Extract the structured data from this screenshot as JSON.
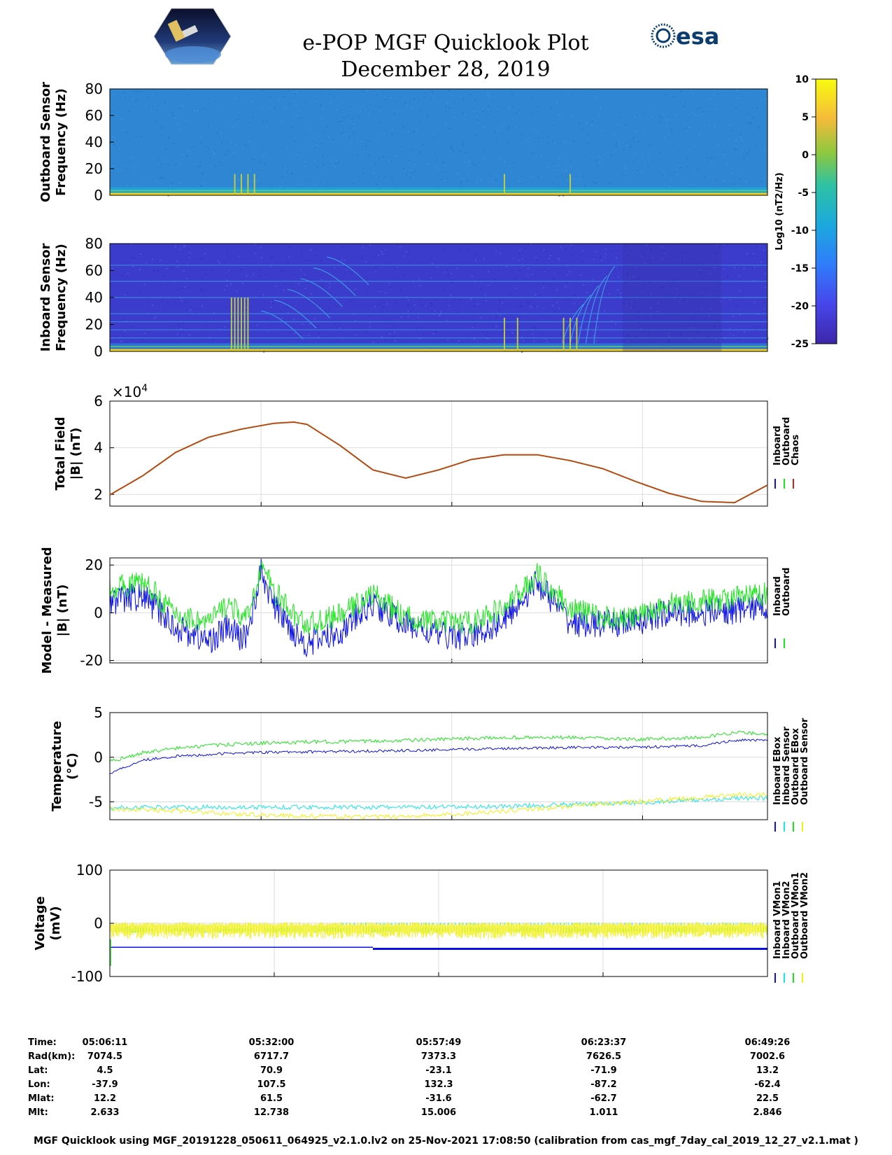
{
  "title": "e-POP MGF Quicklook Plot",
  "date": "December 28, 2019",
  "logos": {
    "left": "cassiope-mission-logo",
    "right_text": "esa"
  },
  "colors": {
    "blue": "#0a10e6",
    "green": "#1ee61e",
    "cyan": "#19e6e6",
    "yellow": "#f0f014",
    "red": "#d21e1e",
    "trace_brown": "#b34a10",
    "spec_out_bg": "#2f86d2",
    "spec_in_bg": "#3c3ccc"
  },
  "chart_data": [
    {
      "type": "heatmap",
      "name": "outboard-spectrogram",
      "ylabel": [
        "Outboard Sensor",
        "Frequency (Hz)"
      ],
      "ylim": [
        0,
        80
      ],
      "yticks": [
        "80",
        "60",
        "40",
        "20",
        "0"
      ],
      "bursts_fraction": [
        0.19,
        0.2,
        0.21,
        0.22,
        0.6,
        0.7
      ]
    },
    {
      "type": "heatmap",
      "name": "inboard-spectrogram",
      "ylabel": [
        "Inboard Sensor",
        "Frequency (Hz)"
      ],
      "ylim": [
        0,
        80
      ],
      "yticks": [
        "80",
        "60",
        "40",
        "20",
        "0"
      ],
      "harmonic_lines_hz": [
        10,
        16,
        22,
        28,
        40,
        52,
        64
      ]
    },
    {
      "type": "colorbar",
      "label": "Log10 (nT2/Hz)",
      "ticks": [
        "10",
        "5",
        "0",
        "-5",
        "-10",
        "-15",
        "-20",
        "-25"
      ],
      "range": [
        -25,
        10
      ]
    },
    {
      "type": "line",
      "name": "total-field",
      "ylabel": [
        "Total Field",
        "|B| (nT)"
      ],
      "exponent": "×10",
      "exponent_power": "4",
      "ylim": [
        1.5,
        6
      ],
      "yticks": [
        "6",
        "4",
        "2"
      ],
      "x": [
        0,
        0.05,
        0.1,
        0.15,
        0.2,
        0.25,
        0.28,
        0.3,
        0.35,
        0.4,
        0.45,
        0.5,
        0.55,
        0.6,
        0.65,
        0.7,
        0.75,
        0.8,
        0.85,
        0.9,
        0.95,
        1.0
      ],
      "y": [
        1.98,
        2.8,
        3.8,
        4.45,
        4.8,
        5.05,
        5.1,
        5.0,
        4.1,
        3.05,
        2.7,
        3.05,
        3.5,
        3.7,
        3.7,
        3.45,
        3.1,
        2.55,
        2.05,
        1.7,
        1.65,
        2.4
      ],
      "legend": [
        "Inboard",
        "Outboard",
        "Chaos"
      ]
    },
    {
      "type": "line",
      "name": "model-minus-measured",
      "ylabel": [
        "Model - Measured",
        "|B| (nT)"
      ],
      "ylim": [
        -21,
        23
      ],
      "yticks": [
        "20",
        "0",
        "-20"
      ],
      "x": [
        0,
        0.05,
        0.07,
        0.1,
        0.15,
        0.18,
        0.2,
        0.21,
        0.23,
        0.25,
        0.28,
        0.3,
        0.35,
        0.4,
        0.45,
        0.5,
        0.55,
        0.6,
        0.65,
        0.7,
        0.75,
        0.8,
        0.85,
        0.9,
        0.95,
        1.0
      ],
      "y_inboard": [
        5,
        7,
        2,
        -6,
        -12,
        -6,
        -11,
        -8,
        17,
        3,
        -8,
        -13,
        -8,
        4,
        -5,
        -9,
        -10,
        -3,
        13,
        -4,
        -5,
        -4,
        0,
        0,
        1,
        3
      ],
      "y_outboard": [
        10,
        13,
        8,
        -1,
        -4,
        4,
        -2,
        -2,
        20,
        9,
        -1,
        -5,
        -1,
        8,
        -2,
        -4,
        -4,
        2,
        16,
        2,
        -2,
        -2,
        4,
        5,
        6,
        8
      ],
      "legend": [
        "Inboard",
        "Outboard"
      ]
    },
    {
      "type": "line",
      "name": "temperature",
      "ylabel": [
        "Temperature",
        "(°C)"
      ],
      "ylim": [
        -7,
        5
      ],
      "yticks": [
        "5",
        "0",
        "-5"
      ],
      "x": [
        0,
        0.05,
        0.1,
        0.15,
        0.2,
        0.3,
        0.4,
        0.5,
        0.6,
        0.7,
        0.8,
        0.9,
        0.95,
        1.0
      ],
      "inboard_ebox": [
        -1.8,
        -0.3,
        0.1,
        0.3,
        0.5,
        0.6,
        0.7,
        0.8,
        1.0,
        1.1,
        1.1,
        1.3,
        1.9,
        1.9
      ],
      "inboard_sensor": [
        -5.7,
        -5.6,
        -5.6,
        -5.6,
        -5.6,
        -5.6,
        -5.6,
        -5.6,
        -5.5,
        -5.3,
        -5.1,
        -4.8,
        -4.6,
        -4.6
      ],
      "outboard_ebox": [
        -0.5,
        0.5,
        1.0,
        1.3,
        1.5,
        1.7,
        1.8,
        2.0,
        2.2,
        2.2,
        2.0,
        2.2,
        2.8,
        2.6
      ],
      "outboard_sensor": [
        -5.8,
        -5.9,
        -6.0,
        -6.2,
        -6.4,
        -6.6,
        -6.7,
        -6.5,
        -6.0,
        -5.5,
        -5.0,
        -4.5,
        -4.2,
        -4.2
      ],
      "legend": [
        "Inboard EBox",
        "Inboard Sensor",
        "Outboard EBox",
        "Outboard Sensor"
      ]
    },
    {
      "type": "line",
      "name": "voltage",
      "ylabel": [
        "Voltage",
        "(mV)"
      ],
      "ylim": [
        -100,
        100
      ],
      "yticks": [
        "100",
        "0",
        "-100"
      ],
      "legend": [
        "Inboard VMon1",
        "Inboard VMon2",
        "Outboard VMon1",
        "Outboard VMon2"
      ],
      "vmon1_inboard_segments": [
        [
          0,
          0.4,
          -45
        ],
        [
          0.4,
          1.0,
          -48
        ]
      ]
    }
  ],
  "ephemeris": {
    "labels": [
      "Time:",
      "Rad(km):",
      "Lat:",
      "Lon:",
      "Mlat:",
      "Mlt:"
    ],
    "columns": [
      [
        "05:06:11",
        "7074.5",
        "4.5",
        "-37.9",
        "12.2",
        "2.633"
      ],
      [
        "05:32:00",
        "6717.7",
        "70.9",
        "107.5",
        "61.5",
        "12.738"
      ],
      [
        "05:57:49",
        "7373.3",
        "-23.1",
        "132.3",
        "-31.6",
        "15.006"
      ],
      [
        "06:23:37",
        "7626.5",
        "-71.9",
        "-87.2",
        "-62.7",
        "1.011"
      ],
      [
        "06:49:26",
        "7002.6",
        "13.2",
        "-62.4",
        "22.5",
        "2.846"
      ]
    ]
  },
  "footer": "MGF Quicklook using MGF_20191228_050611_064925_v2.1.0.lv2 on 25-Nov-2021 17:08:50 (calibration from cas_mgf_7day_cal_2019_12_27_v2.1.mat )"
}
